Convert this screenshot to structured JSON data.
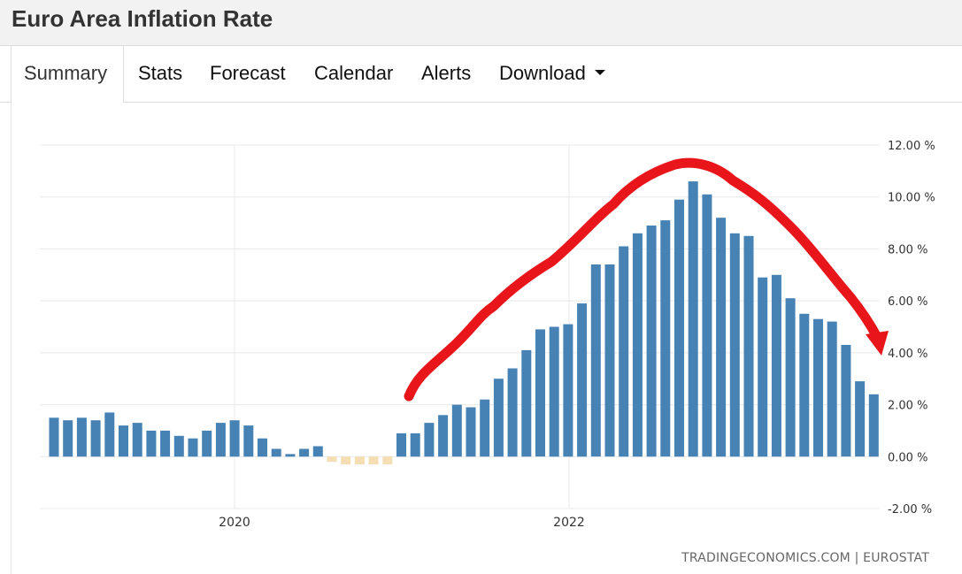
{
  "page": {
    "title": "Euro Area Inflation Rate"
  },
  "tabs": [
    {
      "label": "Summary",
      "active": true
    },
    {
      "label": "Stats"
    },
    {
      "label": "Forecast"
    },
    {
      "label": "Calendar"
    },
    {
      "label": "Alerts"
    },
    {
      "label": "Download",
      "has_dropdown": true,
      "icon": "caret-down-icon"
    }
  ],
  "source": "TRADINGECONOMICS.COM | EUROSTAT",
  "colors": {
    "positive_bar": "#4682b4",
    "negative_bar": "#f5deb3",
    "annotation_arrow": "#e8161b"
  },
  "chart_data": {
    "type": "bar",
    "title": "",
    "xlabel": "",
    "ylabel": "",
    "ylim": [
      -2,
      12
    ],
    "yticks": [
      "12.00 %",
      "10.00 %",
      "8.00 %",
      "6.00 %",
      "4.00 %",
      "2.00 %",
      "0.00 %",
      "-2.00 %"
    ],
    "xticks": [
      "2020",
      "2022"
    ],
    "grid": true,
    "y_axis_position": "right",
    "annotation": "hand-drawn red arrow tracing the rise and fall of inflation",
    "values": [
      1.5,
      1.4,
      1.5,
      1.4,
      1.7,
      1.2,
      1.3,
      1.0,
      1.0,
      0.8,
      0.7,
      1.0,
      1.3,
      1.4,
      1.2,
      0.7,
      0.3,
      0.1,
      0.3,
      0.4,
      -0.2,
      -0.3,
      -0.3,
      -0.3,
      -0.3,
      0.9,
      0.9,
      1.3,
      1.6,
      2.0,
      1.9,
      2.2,
      3.0,
      3.4,
      4.1,
      4.9,
      5.0,
      5.1,
      5.9,
      7.4,
      7.4,
      8.1,
      8.6,
      8.9,
      9.1,
      9.9,
      10.6,
      10.1,
      9.2,
      8.6,
      8.5,
      6.9,
      7.0,
      6.1,
      5.5,
      5.3,
      5.2,
      4.3,
      2.9,
      2.4
    ]
  }
}
